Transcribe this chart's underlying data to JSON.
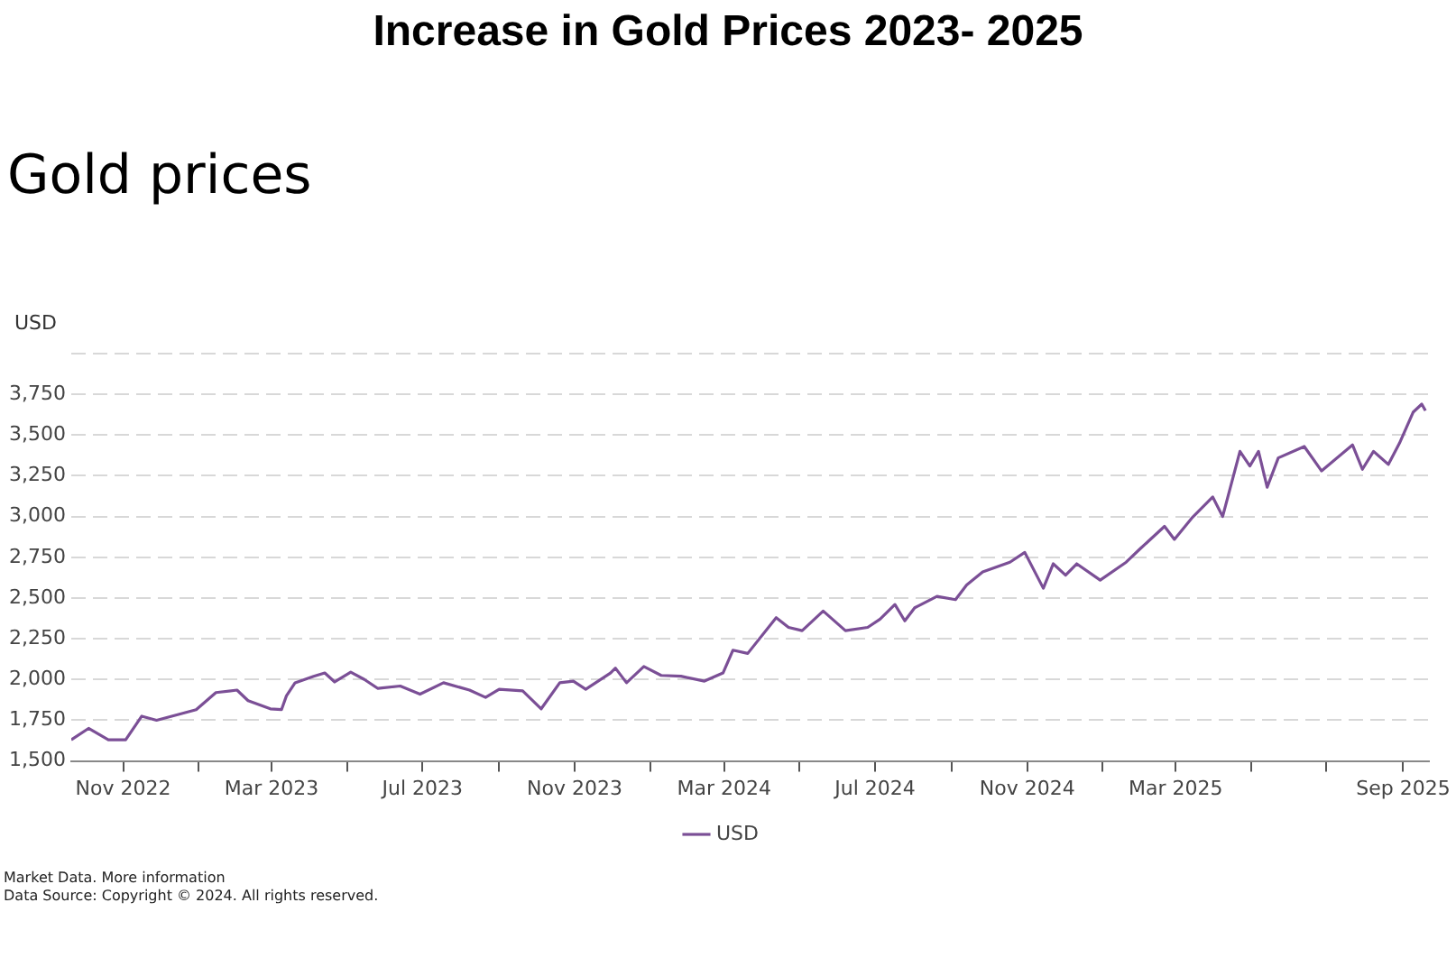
{
  "chart_data": {
    "type": "line",
    "title": "Increase in Gold Prices 2023- 2025",
    "subtitle": "Gold prices",
    "ylabel": "USD",
    "x": [
      "2022-09-20",
      "2022-10-04",
      "2022-10-20",
      "2022-11-03",
      "2022-11-16",
      "2022-11-28",
      "2022-12-13",
      "2022-12-30",
      "2023-01-15",
      "2023-02-01",
      "2023-02-10",
      "2023-02-28",
      "2023-03-09",
      "2023-03-13",
      "2023-03-20",
      "2023-04-04",
      "2023-04-13",
      "2023-04-21",
      "2023-05-04",
      "2023-05-15",
      "2023-05-26",
      "2023-06-13",
      "2023-06-29",
      "2023-07-18",
      "2023-08-08",
      "2023-08-21",
      "2023-09-01",
      "2023-09-20",
      "2023-10-05",
      "2023-10-20",
      "2023-10-31",
      "2023-11-10",
      "2023-11-30",
      "2023-12-04",
      "2023-12-13",
      "2023-12-27",
      "2024-01-10",
      "2024-01-26",
      "2024-02-14",
      "2024-02-29",
      "2024-03-08",
      "2024-03-20",
      "2024-04-12",
      "2024-04-22",
      "2024-05-03",
      "2024-05-20",
      "2024-06-07",
      "2024-06-25",
      "2024-07-05",
      "2024-07-17",
      "2024-07-25",
      "2024-08-02",
      "2024-08-20",
      "2024-09-04",
      "2024-09-13",
      "2024-09-26",
      "2024-10-18",
      "2024-10-30",
      "2024-11-14",
      "2024-11-22",
      "2024-12-02",
      "2024-12-11",
      "2024-12-30",
      "2025-01-20",
      "2025-01-31",
      "2025-02-20",
      "2025-02-28",
      "2025-03-14",
      "2025-03-31",
      "2025-04-08",
      "2025-04-22",
      "2025-04-30",
      "2025-05-07",
      "2025-05-14",
      "2025-05-23",
      "2025-06-13",
      "2025-06-27",
      "2025-07-22",
      "2025-07-30",
      "2025-08-08",
      "2025-08-20",
      "2025-08-29",
      "2025-09-09",
      "2025-09-16",
      "2025-09-19"
    ],
    "series": [
      {
        "name": "USD",
        "color": "#7b4f96",
        "values": [
          1630,
          1700,
          1630,
          1630,
          1775,
          1750,
          1780,
          1815,
          1920,
          1935,
          1870,
          1820,
          1815,
          1900,
          1980,
          2020,
          2040,
          1985,
          2045,
          2000,
          1945,
          1960,
          1910,
          1980,
          1935,
          1890,
          1940,
          1930,
          1820,
          1980,
          1990,
          1940,
          2040,
          2070,
          1980,
          2080,
          2025,
          2020,
          1990,
          2040,
          2180,
          2160,
          2380,
          2320,
          2300,
          2420,
          2300,
          2320,
          2370,
          2460,
          2360,
          2440,
          2510,
          2490,
          2580,
          2660,
          2720,
          2780,
          2560,
          2710,
          2640,
          2710,
          2610,
          2720,
          2800,
          2940,
          2860,
          2990,
          3120,
          3000,
          3400,
          3310,
          3400,
          3180,
          3360,
          3430,
          3280,
          3440,
          3290,
          3400,
          3320,
          3450,
          3640,
          3690,
          3650
        ]
      }
    ],
    "xlim": [
      "2022-09-20",
      "2025-09-22"
    ],
    "xticks": [
      {
        "value": "2022-11",
        "label": "Nov 2022"
      },
      {
        "value": "2023-01",
        "label": null
      },
      {
        "value": "2023-03",
        "label": "Mar 2023"
      },
      {
        "value": "2023-05",
        "label": null
      },
      {
        "value": "2023-07",
        "label": "Jul 2023"
      },
      {
        "value": "2023-09",
        "label": null
      },
      {
        "value": "2023-11",
        "label": "Nov 2023"
      },
      {
        "value": "2024-01",
        "label": null
      },
      {
        "value": "2024-03",
        "label": "Mar 2024"
      },
      {
        "value": "2024-05",
        "label": null
      },
      {
        "value": "2024-07",
        "label": "Jul 2024"
      },
      {
        "value": "2024-09",
        "label": null
      },
      {
        "value": "2024-11",
        "label": "Nov 2024"
      },
      {
        "value": "2025-01",
        "label": null
      },
      {
        "value": "2025-03",
        "label": "Mar 2025"
      },
      {
        "value": "2025-05",
        "label": null
      },
      {
        "value": "2025-07",
        "label": null
      },
      {
        "value": "2025-09",
        "label": "Sep 2025"
      }
    ],
    "ylim": [
      1500,
      4000
    ],
    "yticks": [
      {
        "value": 1500,
        "label": "1,500"
      },
      {
        "value": 1750,
        "label": "1,750"
      },
      {
        "value": 2000,
        "label": "2,000"
      },
      {
        "value": 2250,
        "label": "2,250"
      },
      {
        "value": 2500,
        "label": "2,500"
      },
      {
        "value": 2750,
        "label": "2,750"
      },
      {
        "value": 3000,
        "label": "3,000"
      },
      {
        "value": 3250,
        "label": "3,250"
      },
      {
        "value": 3500,
        "label": "3,500"
      },
      {
        "value": 3750,
        "label": "3,750"
      },
      {
        "value": 4000,
        "label": null
      }
    ],
    "grid": "y",
    "legend": "bottom",
    "marker": "none",
    "line_style": "solid",
    "annotations": [
      "Market Data. More information",
      "Data Source: Copyright © 2024. All rights reserved."
    ]
  }
}
